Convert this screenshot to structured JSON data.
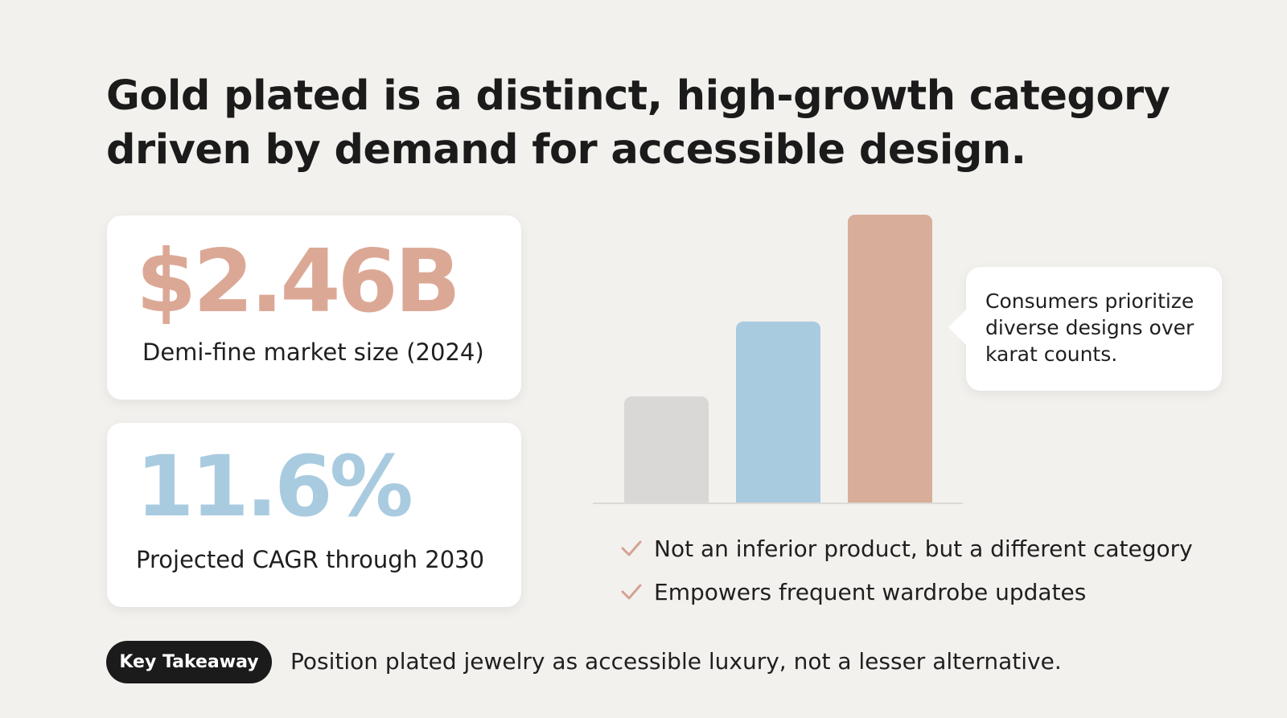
{
  "title": {
    "line1": "Gold plated is a distinct, high-growth category",
    "line2": "driven by demand for accessible design."
  },
  "stats": [
    {
      "value": "$2.46B",
      "label": "Demi-fine market size (2024)",
      "color": "#dca896"
    },
    {
      "value": "11.6%",
      "label": "Projected CAGR through 2030",
      "color": "#a9cbe0"
    }
  ],
  "chart_data": {
    "type": "bar",
    "categories": [
      "",
      "",
      ""
    ],
    "values": [
      37,
      63,
      100
    ],
    "colors": [
      "#d9d8d7",
      "#a9cbe0",
      "#d8ad99"
    ],
    "title": "",
    "xlabel": "",
    "ylabel": "",
    "ylim": [
      0,
      100
    ],
    "grid": false,
    "legend": "none"
  },
  "callout": {
    "text": "Consumers prioritize diverse designs over karat counts."
  },
  "bullets": [
    {
      "icon": "check-icon",
      "text": "Not an inferior product, but a different category"
    },
    {
      "icon": "check-icon",
      "text": "Empowers frequent wardrobe updates"
    }
  ],
  "takeaway": {
    "badge": "Key Takeaway",
    "text": "Position plated jewelry as accessible luxury, not a lesser alternative."
  },
  "colors": {
    "background": "#f3f1ee",
    "accent_rose": "#dca896",
    "accent_blue": "#a9cbe0",
    "check": "#d4a393",
    "badge": "#1b1b1b"
  }
}
